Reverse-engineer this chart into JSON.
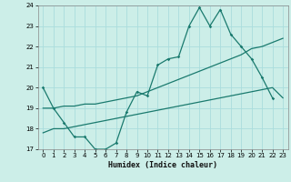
{
  "xlabel": "Humidex (Indice chaleur)",
  "background_color": "#cceee8",
  "grid_color": "#aadddd",
  "line_color": "#1a7a6e",
  "xlim": [
    -0.5,
    23.5
  ],
  "ylim": [
    17,
    24
  ],
  "xticks": [
    0,
    1,
    2,
    3,
    4,
    5,
    6,
    7,
    8,
    9,
    10,
    11,
    12,
    13,
    14,
    15,
    16,
    17,
    18,
    19,
    20,
    21,
    22,
    23
  ],
  "yticks": [
    17,
    18,
    19,
    20,
    21,
    22,
    23,
    24
  ],
  "series1_x": [
    0,
    1,
    2,
    3,
    4,
    5,
    6,
    7,
    8,
    9,
    10,
    11,
    12,
    13,
    14,
    15,
    16,
    17,
    18,
    19,
    20,
    21,
    22,
    23
  ],
  "series1_y": [
    20.0,
    19.0,
    18.3,
    17.6,
    17.6,
    17.0,
    17.0,
    17.3,
    18.8,
    19.8,
    19.6,
    21.1,
    21.4,
    21.5,
    23.0,
    23.9,
    23.0,
    23.8,
    22.6,
    22.0,
    21.4,
    20.5,
    19.5,
    null
  ],
  "series2_x": [
    0,
    1,
    2,
    3,
    4,
    5,
    6,
    7,
    8,
    9,
    10,
    11,
    12,
    13,
    14,
    15,
    16,
    17,
    18,
    19,
    20,
    21,
    22,
    23
  ],
  "series2_y": [
    19.0,
    19.0,
    19.1,
    19.1,
    19.2,
    19.2,
    19.3,
    19.4,
    19.5,
    19.6,
    19.8,
    20.0,
    20.2,
    20.4,
    20.6,
    20.8,
    21.0,
    21.2,
    21.4,
    21.6,
    21.9,
    22.0,
    22.2,
    22.4
  ],
  "series3_x": [
    0,
    1,
    2,
    3,
    4,
    5,
    6,
    7,
    8,
    9,
    10,
    11,
    12,
    13,
    14,
    15,
    16,
    17,
    18,
    19,
    20,
    21,
    22,
    23
  ],
  "series3_y": [
    17.8,
    18.0,
    18.0,
    18.1,
    18.2,
    18.3,
    18.4,
    18.5,
    18.6,
    18.7,
    18.8,
    18.9,
    19.0,
    19.1,
    19.2,
    19.3,
    19.4,
    19.5,
    19.6,
    19.7,
    19.8,
    19.9,
    20.0,
    19.5
  ]
}
